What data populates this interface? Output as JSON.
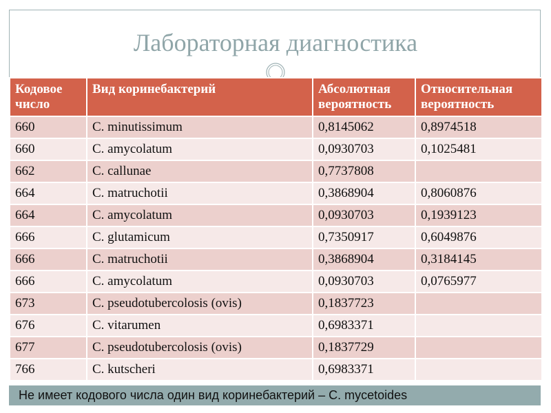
{
  "slide": {
    "title": "Лабораторная диагностика",
    "accent_color": "#d3624b",
    "title_color": "#8fa5a8",
    "footer_color": "#93abad"
  },
  "table": {
    "headers": [
      "Кодовое число",
      "Вид коринебактерий",
      "Абсолютная вероятность",
      "Относительная вероятность"
    ],
    "rows": [
      [
        "660",
        "C. minutissimum",
        "0,8145062",
        "0,8974518"
      ],
      [
        "660",
        "C. amycolatum",
        "0,0930703",
        "0,1025481"
      ],
      [
        "662",
        "C. callunae",
        "0,7737808",
        ""
      ],
      [
        "664",
        "C. matruchotii",
        "0,3868904",
        "0,8060876"
      ],
      [
        "664",
        "C. amycolatum",
        "0,0930703",
        "0,1939123"
      ],
      [
        "666",
        "C. glutamicum",
        "0,7350917",
        "0,6049876"
      ],
      [
        "666",
        "C. matruchotii",
        "0,3868904",
        "0,3184145"
      ],
      [
        "666",
        "C. amycolatum",
        "0,0930703",
        "0,0765977"
      ],
      [
        "673",
        "C. pseudotubercolosis (ovis)",
        "0,1837723",
        ""
      ],
      [
        "676",
        "C. vitarumen",
        "0,6983371",
        ""
      ],
      [
        "677",
        "C. pseudotubercolosis (ovis)",
        "0,1837729",
        ""
      ],
      [
        "766",
        "C. kutscheri",
        "0,6983371",
        ""
      ]
    ]
  },
  "footnote": "Не имеет кодового числа один вид коринебактерий  – C. mycetoides"
}
